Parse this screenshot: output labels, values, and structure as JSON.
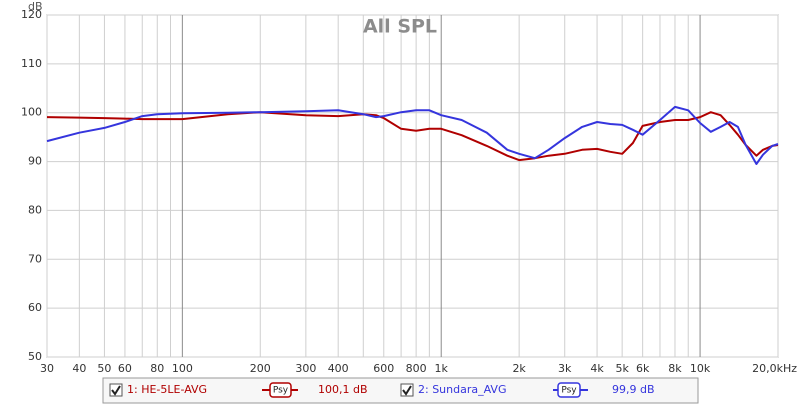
{
  "chart_data": {
    "type": "line",
    "title": "All SPL",
    "y_label": "dB",
    "x_scale": "log",
    "grid": true,
    "x": [
      30,
      40,
      50,
      60,
      70,
      80,
      100,
      150,
      200,
      300,
      400,
      500,
      560,
      600,
      700,
      800,
      900,
      1000,
      1200,
      1500,
      1800,
      2000,
      2300,
      2600,
      3000,
      3500,
      4000,
      4500,
      5000,
      5500,
      6000,
      7000,
      8000,
      9000,
      10000,
      11000,
      12000,
      13000,
      14000,
      15000,
      16500,
      17500,
      19000,
      20000
    ],
    "series": [
      {
        "name": "1: HE-5LE-AVG",
        "color": "#b00000",
        "smoothing": "Psy",
        "level": {
          "value": 100.1,
          "label": "100,1 dB"
        },
        "values": [
          99.1,
          99.0,
          98.9,
          98.8,
          98.7,
          98.7,
          98.7,
          99.7,
          100.1,
          99.5,
          99.3,
          99.7,
          99.5,
          98.9,
          96.7,
          96.3,
          96.7,
          96.7,
          95.4,
          93.2,
          91.2,
          90.3,
          90.7,
          91.2,
          91.6,
          92.4,
          92.6,
          92.0,
          91.6,
          93.8,
          97.3,
          98.1,
          98.5,
          98.5,
          99.1,
          100.1,
          99.5,
          97.5,
          95.5,
          93.4,
          91.2,
          92.4,
          93.2,
          93.4
        ]
      },
      {
        "name": "2: Sundara_AVG",
        "color": "#3535dd",
        "smoothing": "Psy",
        "level": {
          "value": 99.9,
          "label": "99,9 dB"
        },
        "values": [
          94.2,
          95.9,
          96.9,
          98.1,
          99.3,
          99.7,
          99.9,
          100.0,
          100.1,
          100.3,
          100.5,
          99.7,
          99.1,
          99.3,
          100.1,
          100.5,
          100.5,
          99.5,
          98.5,
          95.9,
          92.4,
          91.6,
          90.7,
          92.4,
          94.8,
          97.1,
          98.1,
          97.7,
          97.5,
          96.5,
          95.5,
          98.5,
          101.2,
          100.5,
          97.9,
          96.1,
          97.1,
          98.1,
          97.1,
          93.4,
          89.5,
          91.4,
          93.2,
          93.6
        ]
      }
    ],
    "xlim": [
      30,
      20000
    ],
    "xticks": [
      30,
      40,
      50,
      60,
      80,
      100,
      200,
      300,
      400,
      600,
      800,
      {
        "value": 1000,
        "label": "1k"
      },
      {
        "value": 2000,
        "label": "2k"
      },
      {
        "value": 3000,
        "label": "3k"
      },
      {
        "value": 4000,
        "label": "4k"
      },
      {
        "value": 5000,
        "label": "5k"
      },
      {
        "value": 6000,
        "label": "6k"
      },
      {
        "value": 8000,
        "label": "8k"
      },
      {
        "value": 10000,
        "label": "10k"
      },
      {
        "value": 20000,
        "label": "20,0kHz"
      }
    ],
    "x_minor_grid": [
      70,
      90,
      500,
      700,
      900,
      7000,
      9000
    ],
    "ylim": [
      50,
      120
    ],
    "yticks": [
      50,
      60,
      70,
      80,
      90,
      100,
      110,
      120
    ]
  }
}
